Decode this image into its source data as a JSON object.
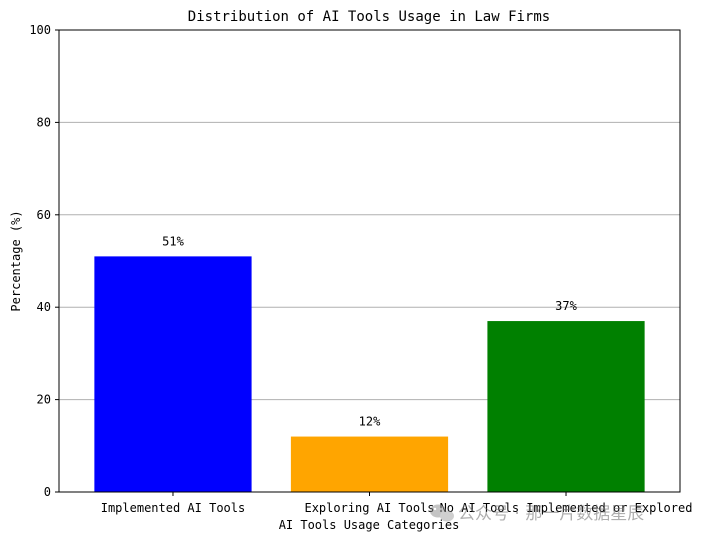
{
  "chart_data": {
    "type": "bar",
    "title": "Distribution of AI Tools Usage in Law Firms",
    "xlabel": "AI Tools Usage Categories",
    "ylabel": "Percentage (%)",
    "categories": [
      "Implemented AI Tools",
      "Exploring AI Tools",
      "No AI Tools Implemented or Explored"
    ],
    "values": [
      51,
      12,
      37
    ],
    "data_labels": [
      "51%",
      "12%",
      "37%"
    ],
    "colors": [
      "#0000ff",
      "#ffa500",
      "#008000"
    ],
    "ylim": [
      0,
      100
    ],
    "yticks": [
      0,
      20,
      40,
      60,
      80,
      100
    ],
    "grid": "y-axis horizontal lines",
    "legend": "none"
  },
  "watermark": {
    "text": "公众号 · 那一片数据星辰",
    "icon": "wechat-icon"
  },
  "colors": {
    "grid": "#b0b0b0",
    "axes": "#000000",
    "background": "#ffffff"
  }
}
